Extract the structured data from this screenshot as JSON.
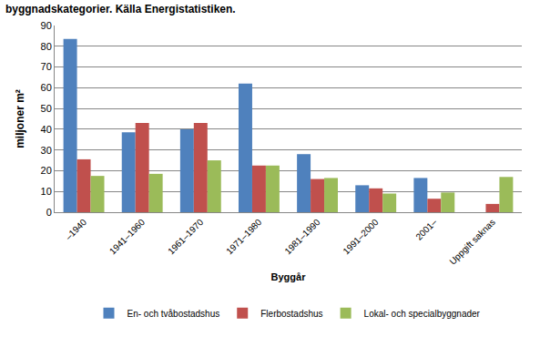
{
  "chart_data": {
    "type": "bar",
    "title": "byggnadskategorier. Källa Energistatistiken.",
    "x_label": "Byggår",
    "y_label": "miljoner m²",
    "categories": [
      "–1940",
      "1941–1960",
      "1961–1970",
      "1971–1980",
      "1981–1990",
      "1991–2000",
      "2001–",
      "Uppgift saknas"
    ],
    "series": [
      {
        "name": "En- och tvåbostadshus",
        "color": "#4f81bd",
        "values": [
          83.5,
          38.5,
          40,
          62,
          28,
          13,
          16.5,
          null
        ]
      },
      {
        "name": "Flerbostadshus",
        "color": "#c0504d",
        "values": [
          25.5,
          43,
          43,
          22.5,
          16,
          11.5,
          6.5,
          4
        ]
      },
      {
        "name": "Lokal- och specialbyggnader",
        "color": "#9bbb59",
        "values": [
          17.5,
          18.5,
          25,
          22.5,
          16.5,
          9,
          9.5,
          17
        ]
      }
    ],
    "ylim": [
      0,
      90
    ],
    "yticks": [
      0,
      10,
      20,
      30,
      40,
      50,
      60,
      70,
      80,
      90
    ],
    "grid": true,
    "legend": "bottom"
  }
}
